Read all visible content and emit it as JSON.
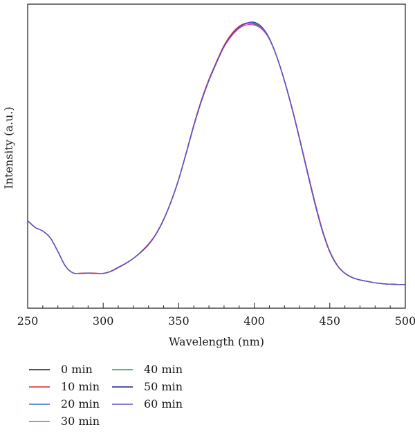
{
  "chart_data": {
    "type": "line",
    "xlabel": "Wavelength (nm)",
    "ylabel": "Intensity (a.u.)",
    "xlim": [
      250,
      500
    ],
    "ylim": [
      0,
      1.1
    ],
    "x_ticks": [
      "250",
      "300",
      "350",
      "400",
      "450",
      "500"
    ],
    "y_ticks_shown": false,
    "grid": false,
    "legend_position": "bottom-left",
    "x": [
      250,
      255,
      260,
      265,
      270,
      275,
      280,
      285,
      290,
      295,
      300,
      305,
      310,
      315,
      320,
      325,
      330,
      335,
      340,
      345,
      350,
      355,
      360,
      365,
      370,
      375,
      380,
      385,
      390,
      395,
      400,
      405,
      410,
      415,
      420,
      425,
      430,
      435,
      440,
      445,
      450,
      455,
      460,
      465,
      470,
      475,
      480,
      485,
      490,
      495,
      500
    ],
    "series": [
      {
        "name": "0 min",
        "color": "#1a1a1a",
        "values": [
          0.272,
          0.243,
          0.228,
          0.199,
          0.141,
          0.079,
          0.05,
          0.048,
          0.049,
          0.048,
          0.048,
          0.057,
          0.074,
          0.091,
          0.112,
          0.138,
          0.17,
          0.215,
          0.276,
          0.354,
          0.448,
          0.56,
          0.676,
          0.78,
          0.868,
          0.943,
          1.012,
          1.06,
          1.093,
          1.11,
          1.108,
          1.09,
          1.045,
          0.967,
          0.866,
          0.749,
          0.62,
          0.483,
          0.35,
          0.231,
          0.14,
          0.081,
          0.048,
          0.03,
          0.02,
          0.014,
          0.008,
          0.004,
          0.002,
          0.001,
          0.0
        ]
      },
      {
        "name": "10 min",
        "color": "#e02020",
        "values": [
          0.272,
          0.243,
          0.228,
          0.199,
          0.141,
          0.079,
          0.05,
          0.049,
          0.05,
          0.049,
          0.048,
          0.056,
          0.072,
          0.09,
          0.112,
          0.14,
          0.173,
          0.217,
          0.278,
          0.356,
          0.45,
          0.563,
          0.68,
          0.785,
          0.873,
          0.948,
          1.017,
          1.066,
          1.098,
          1.112,
          1.107,
          1.088,
          1.044,
          0.968,
          0.868,
          0.752,
          0.623,
          0.488,
          0.356,
          0.236,
          0.143,
          0.083,
          0.049,
          0.031,
          0.02,
          0.014,
          0.008,
          0.004,
          0.002,
          0.001,
          0.0
        ]
      },
      {
        "name": "20 min",
        "color": "#3a6fd8",
        "values": [
          0.272,
          0.243,
          0.228,
          0.199,
          0.141,
          0.079,
          0.05,
          0.048,
          0.049,
          0.048,
          0.048,
          0.057,
          0.074,
          0.091,
          0.112,
          0.138,
          0.17,
          0.215,
          0.276,
          0.354,
          0.448,
          0.56,
          0.676,
          0.78,
          0.868,
          0.943,
          1.012,
          1.06,
          1.093,
          1.11,
          1.108,
          1.09,
          1.045,
          0.967,
          0.866,
          0.749,
          0.62,
          0.483,
          0.35,
          0.231,
          0.14,
          0.081,
          0.048,
          0.03,
          0.02,
          0.014,
          0.008,
          0.004,
          0.002,
          0.001,
          0.0
        ]
      },
      {
        "name": "30 min",
        "color": "#e040c0",
        "values": [
          0.272,
          0.243,
          0.228,
          0.199,
          0.141,
          0.079,
          0.05,
          0.048,
          0.049,
          0.048,
          0.048,
          0.057,
          0.074,
          0.091,
          0.112,
          0.138,
          0.17,
          0.215,
          0.276,
          0.354,
          0.448,
          0.56,
          0.676,
          0.78,
          0.868,
          0.943,
          1.01,
          1.057,
          1.089,
          1.104,
          1.103,
          1.086,
          1.043,
          0.967,
          0.867,
          0.751,
          0.622,
          0.486,
          0.353,
          0.233,
          0.141,
          0.082,
          0.048,
          0.03,
          0.02,
          0.014,
          0.008,
          0.004,
          0.002,
          0.001,
          0.0
        ]
      },
      {
        "name": "40 min",
        "color": "#20a040",
        "values": [
          0.272,
          0.243,
          0.228,
          0.199,
          0.141,
          0.079,
          0.05,
          0.048,
          0.049,
          0.048,
          0.048,
          0.057,
          0.074,
          0.091,
          0.112,
          0.138,
          0.17,
          0.215,
          0.276,
          0.354,
          0.448,
          0.56,
          0.676,
          0.78,
          0.868,
          0.943,
          1.012,
          1.06,
          1.093,
          1.11,
          1.108,
          1.09,
          1.045,
          0.967,
          0.866,
          0.749,
          0.62,
          0.483,
          0.35,
          0.231,
          0.14,
          0.081,
          0.048,
          0.03,
          0.02,
          0.014,
          0.008,
          0.004,
          0.002,
          0.001,
          0.0
        ]
      },
      {
        "name": "50 min",
        "color": "#1a1a8c",
        "values": [
          0.272,
          0.243,
          0.228,
          0.199,
          0.141,
          0.079,
          0.05,
          0.048,
          0.049,
          0.048,
          0.048,
          0.057,
          0.074,
          0.091,
          0.112,
          0.138,
          0.17,
          0.215,
          0.276,
          0.354,
          0.448,
          0.56,
          0.676,
          0.78,
          0.868,
          0.943,
          1.012,
          1.06,
          1.093,
          1.112,
          1.115,
          1.095,
          1.047,
          0.967,
          0.865,
          0.748,
          0.618,
          0.481,
          0.348,
          0.23,
          0.139,
          0.081,
          0.048,
          0.03,
          0.02,
          0.014,
          0.008,
          0.004,
          0.002,
          0.001,
          0.0
        ]
      },
      {
        "name": "60 min",
        "color": "#6a4fd0",
        "values": [
          0.272,
          0.243,
          0.228,
          0.199,
          0.141,
          0.079,
          0.05,
          0.048,
          0.049,
          0.048,
          0.048,
          0.057,
          0.074,
          0.091,
          0.112,
          0.138,
          0.17,
          0.215,
          0.276,
          0.354,
          0.448,
          0.56,
          0.676,
          0.78,
          0.868,
          0.943,
          1.012,
          1.06,
          1.093,
          1.112,
          1.113,
          1.093,
          1.046,
          0.967,
          0.866,
          0.749,
          0.62,
          0.483,
          0.35,
          0.231,
          0.14,
          0.081,
          0.048,
          0.03,
          0.02,
          0.014,
          0.008,
          0.004,
          0.002,
          0.001,
          0.0
        ]
      }
    ]
  }
}
